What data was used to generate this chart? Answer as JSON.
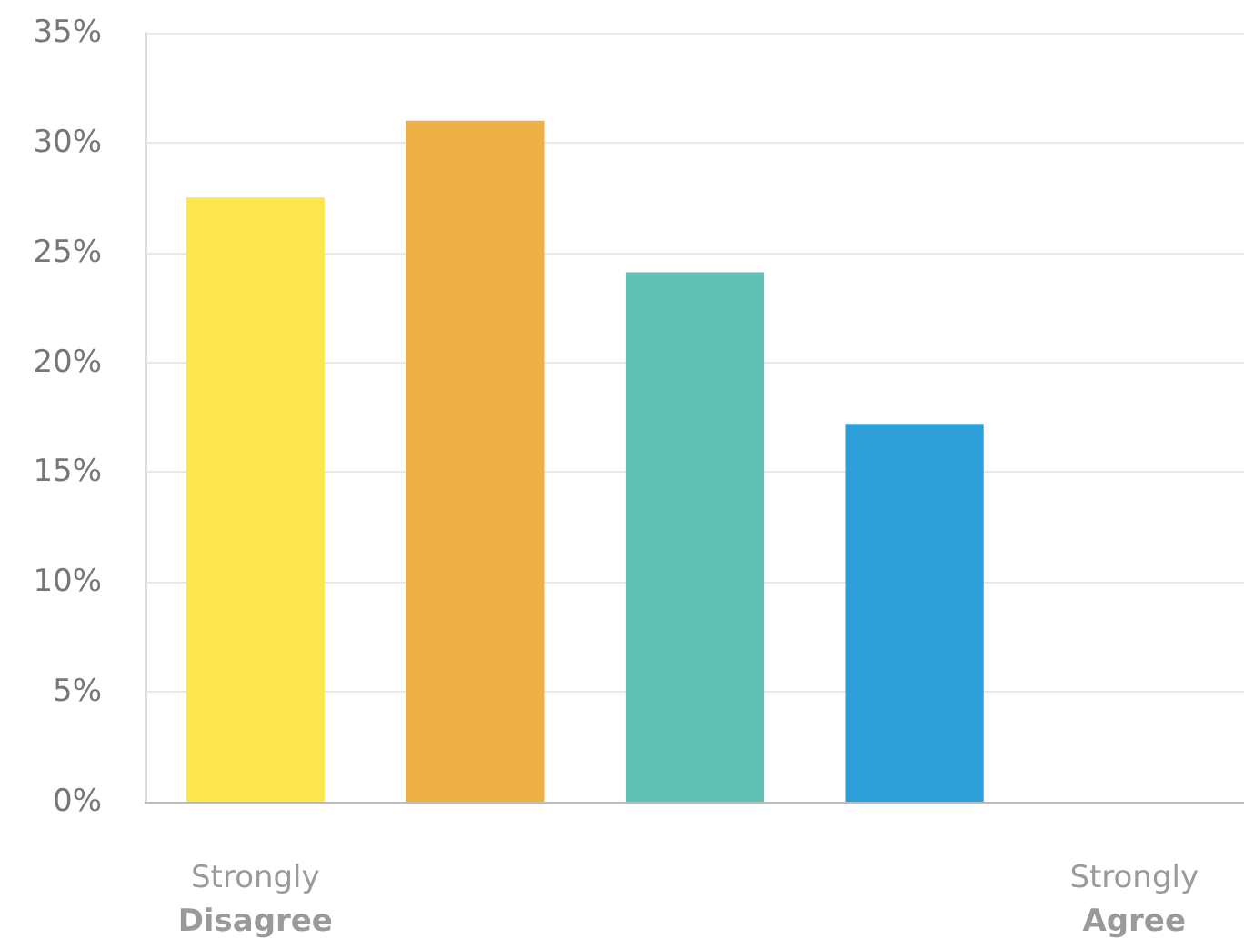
{
  "chart_data": {
    "type": "bar",
    "categories": [
      "Strongly Disagree",
      null,
      null,
      null,
      "Strongly Agree"
    ],
    "values": [
      27.5,
      31,
      24.1,
      17.2,
      0
    ],
    "colors": [
      "#fbe64d",
      "#efb045",
      "#60c0b4",
      "#2e9fd9",
      "#2e9fd9"
    ],
    "ylim": [
      0,
      35
    ],
    "yticks": [
      {
        "value": 0,
        "label": "0%"
      },
      {
        "value": 5,
        "label": "5%"
      },
      {
        "value": 10,
        "label": "10%"
      },
      {
        "value": 15,
        "label": "15%"
      },
      {
        "value": 20,
        "label": "20%"
      },
      {
        "value": 25,
        "label": "25%"
      },
      {
        "value": 30,
        "label": "30%"
      },
      {
        "value": 35,
        "label": "35%"
      }
    ],
    "grid": "y"
  }
}
